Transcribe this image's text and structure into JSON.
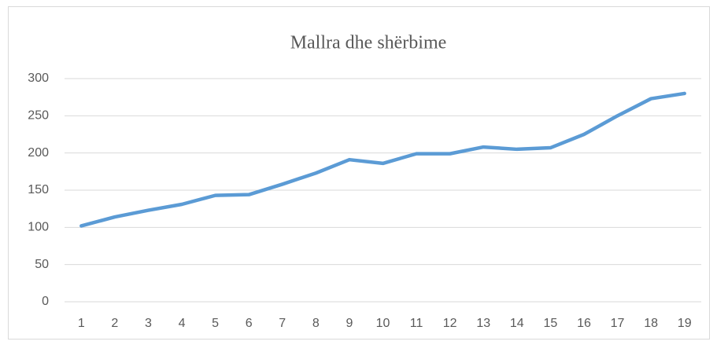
{
  "chart_data": {
    "type": "line",
    "title": "Mallra dhe shërbime",
    "categories": [
      "1",
      "2",
      "3",
      "4",
      "5",
      "6",
      "7",
      "8",
      "9",
      "10",
      "11",
      "12",
      "13",
      "14",
      "15",
      "16",
      "17",
      "18",
      "19"
    ],
    "series": [
      {
        "name": "Mallra dhe shërbime",
        "color": "#5b9bd5",
        "values": [
          102,
          114,
          123,
          131,
          143,
          144,
          158,
          173,
          191,
          186,
          199,
          199,
          208,
          205,
          207,
          225,
          250,
          273,
          280
        ]
      }
    ],
    "ylim": [
      0,
      300
    ],
    "yticks": [
      0,
      50,
      100,
      150,
      200,
      250,
      300
    ],
    "grid": true
  }
}
